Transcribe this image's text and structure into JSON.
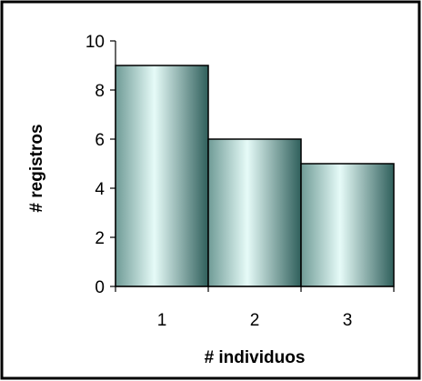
{
  "chart_data": {
    "type": "bar",
    "categories": [
      "1",
      "2",
      "3"
    ],
    "values": [
      9,
      6,
      5
    ],
    "title": "",
    "xlabel": "# individuos",
    "ylabel": "# registros",
    "ylim": [
      0,
      10
    ],
    "yticks": [
      "0",
      "2",
      "4",
      "6",
      "8",
      "10"
    ],
    "grid": false,
    "legend": "none",
    "bar_gradient": [
      "#6f9b96",
      "#e6fbf8",
      "#2f5f5b"
    ],
    "bar_outline": "#000000",
    "frame_color": "#000000"
  }
}
